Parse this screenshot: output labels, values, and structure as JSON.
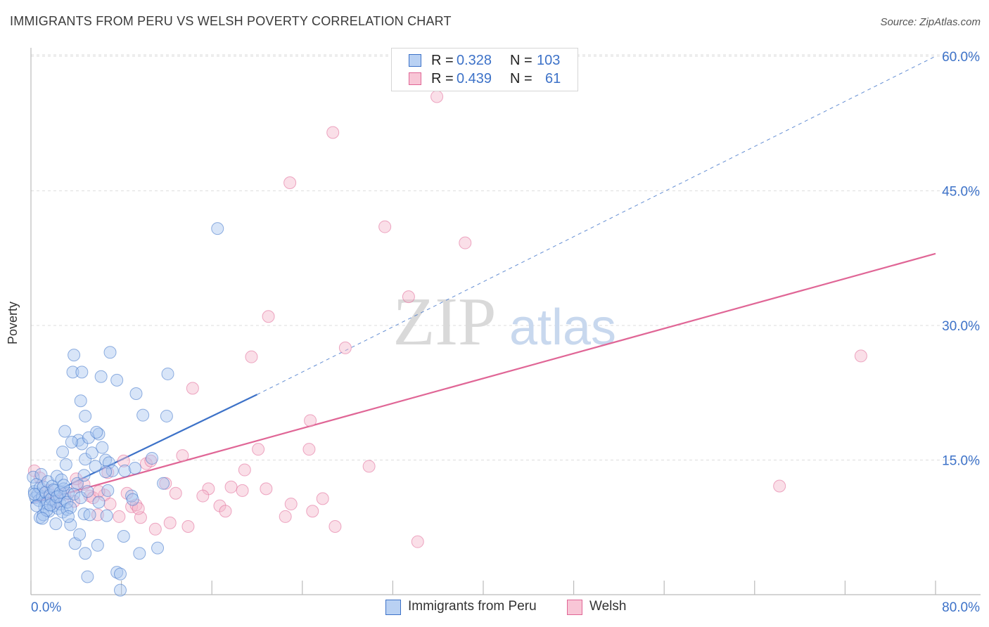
{
  "title": "IMMIGRANTS FROM PERU VS WELSH POVERTY CORRELATION CHART",
  "source": "Source: ZipAtlas.com",
  "watermark": {
    "zip": "ZIP",
    "atlas": "atlas"
  },
  "colors": {
    "blue": "#3d72c8",
    "blue_fill": "#a9c6ef",
    "pink": "#e06696",
    "pink_fill": "#f5b8cc"
  },
  "legend": {
    "r_label": "R =",
    "n_label": "N =",
    "rows": [
      {
        "r": "0.328",
        "n": "103"
      },
      {
        "r": "0.439",
        "n": "61"
      }
    ]
  },
  "chart_data": {
    "type": "scatter",
    "title": "IMMIGRANTS FROM PERU VS WELSH POVERTY CORRELATION CHART",
    "xlabel": "",
    "ylabel": "Poverty",
    "xlim": [
      0,
      80
    ],
    "ylim": [
      0,
      60
    ],
    "x_tick_labels": [
      "0.0%",
      "80.0%"
    ],
    "y_ticks": [
      15,
      30,
      45,
      60
    ],
    "y_tick_labels": [
      "15.0%",
      "30.0%",
      "45.0%",
      "60.0%"
    ],
    "series": [
      {
        "name": "Immigrants from Peru",
        "color": "#3d72c8",
        "trend": {
          "x0": 0,
          "y0": 10.2,
          "x1": 20,
          "y1": 22.3,
          "dashed_to_x": 80,
          "dashed_to_y": 60.0
        },
        "points": [
          [
            0.2,
            13.1
          ],
          [
            0.3,
            11.5
          ],
          [
            0.4,
            10.8
          ],
          [
            0.5,
            12.3
          ],
          [
            0.6,
            11.2
          ],
          [
            0.7,
            10.5
          ],
          [
            0.8,
            11.9
          ],
          [
            0.9,
            13.4
          ],
          [
            1.0,
            10.9
          ],
          [
            1.1,
            12.0
          ],
          [
            1.2,
            9.8
          ],
          [
            1.3,
            11.4
          ],
          [
            1.4,
            10.2
          ],
          [
            1.5,
            12.6
          ],
          [
            1.6,
            9.3
          ],
          [
            1.7,
            11.1
          ],
          [
            1.8,
            10.7
          ],
          [
            1.9,
            12.1
          ],
          [
            2.0,
            9.9
          ],
          [
            2.1,
            11.6
          ],
          [
            2.2,
            10.4
          ],
          [
            2.3,
            13.2
          ],
          [
            2.4,
            9.6
          ],
          [
            2.5,
            11.0
          ],
          [
            2.6,
            10.1
          ],
          [
            2.7,
            12.8
          ],
          [
            2.8,
            9.2
          ],
          [
            2.9,
            11.8
          ],
          [
            3.0,
            10.6
          ],
          [
            3.1,
            14.5
          ],
          [
            3.2,
            9.5
          ],
          [
            3.3,
            11.3
          ],
          [
            0.5,
            9.9
          ],
          [
            0.8,
            8.6
          ],
          [
            1.1,
            8.9
          ],
          [
            1.4,
            9.4
          ],
          [
            1.7,
            10.0
          ],
          [
            2.0,
            11.7
          ],
          [
            2.3,
            10.9
          ],
          [
            2.6,
            11.4
          ],
          [
            2.9,
            12.2
          ],
          [
            3.2,
            10.3
          ],
          [
            3.5,
            9.7
          ],
          [
            3.8,
            11.2
          ],
          [
            4.1,
            12.4
          ],
          [
            4.4,
            10.8
          ],
          [
            4.7,
            13.3
          ],
          [
            5.0,
            11.5
          ],
          [
            4.2,
            17.2
          ],
          [
            4.5,
            16.8
          ],
          [
            4.8,
            15.1
          ],
          [
            5.1,
            17.5
          ],
          [
            5.4,
            15.8
          ],
          [
            5.7,
            14.3
          ],
          [
            6.0,
            17.9
          ],
          [
            6.3,
            16.4
          ],
          [
            6.6,
            15.0
          ],
          [
            6.9,
            14.7
          ],
          [
            7.2,
            13.8
          ],
          [
            2.8,
            15.9
          ],
          [
            3.0,
            18.2
          ],
          [
            3.6,
            17.0
          ],
          [
            3.8,
            26.7
          ],
          [
            3.7,
            24.8
          ],
          [
            4.5,
            24.8
          ],
          [
            4.4,
            21.6
          ],
          [
            4.8,
            19.9
          ],
          [
            5.8,
            18.1
          ],
          [
            6.2,
            24.3
          ],
          [
            7.0,
            27.0
          ],
          [
            7.6,
            23.9
          ],
          [
            9.3,
            22.4
          ],
          [
            9.9,
            20.0
          ],
          [
            12.1,
            24.6
          ],
          [
            12.0,
            19.9
          ],
          [
            10.7,
            15.2
          ],
          [
            8.3,
            13.8
          ],
          [
            6.6,
            13.7
          ],
          [
            6.8,
            11.6
          ],
          [
            8.9,
            11.0
          ],
          [
            11.7,
            12.4
          ],
          [
            9.2,
            14.1
          ],
          [
            3.5,
            7.8
          ],
          [
            3.9,
            5.7
          ],
          [
            4.3,
            6.7
          ],
          [
            4.8,
            4.6
          ],
          [
            5.9,
            5.5
          ],
          [
            6.7,
            8.8
          ],
          [
            8.2,
            6.5
          ],
          [
            9.6,
            4.6
          ],
          [
            5.0,
            2.0
          ],
          [
            7.6,
            2.5
          ],
          [
            7.9,
            2.3
          ],
          [
            7.9,
            0.5
          ],
          [
            3.3,
            8.7
          ],
          [
            4.7,
            9.0
          ],
          [
            5.2,
            8.9
          ],
          [
            16.5,
            40.8
          ],
          [
            11.2,
            5.2
          ],
          [
            1.0,
            8.5
          ],
          [
            2.2,
            7.9
          ],
          [
            6.0,
            10.3
          ],
          [
            9.0,
            10.6
          ],
          [
            0.3,
            11.2
          ]
        ]
      },
      {
        "name": "Welsh",
        "color": "#e06696",
        "trend": {
          "x0": 0,
          "y0": 10.2,
          "x1": 80,
          "y1": 38.0
        },
        "points": [
          [
            0.3,
            13.8
          ],
          [
            0.8,
            13.0
          ],
          [
            1.5,
            11.6
          ],
          [
            2.2,
            10.3
          ],
          [
            3.0,
            11.2
          ],
          [
            3.8,
            10.4
          ],
          [
            4.1,
            12.0
          ],
          [
            4.7,
            12.3
          ],
          [
            5.2,
            11.0
          ],
          [
            5.5,
            10.8
          ],
          [
            5.9,
            8.9
          ],
          [
            6.5,
            11.1
          ],
          [
            6.8,
            13.6
          ],
          [
            7.0,
            10.1
          ],
          [
            7.8,
            8.7
          ],
          [
            8.2,
            14.9
          ],
          [
            8.5,
            11.3
          ],
          [
            8.9,
            9.8
          ],
          [
            9.3,
            10.0
          ],
          [
            9.7,
            8.6
          ],
          [
            10.2,
            14.6
          ],
          [
            10.6,
            14.9
          ],
          [
            11.0,
            7.3
          ],
          [
            12.3,
            8.0
          ],
          [
            12.8,
            11.3
          ],
          [
            13.4,
            15.5
          ],
          [
            13.9,
            7.6
          ],
          [
            14.3,
            23.0
          ],
          [
            15.7,
            11.8
          ],
          [
            16.7,
            9.9
          ],
          [
            17.2,
            9.3
          ],
          [
            17.7,
            12.0
          ],
          [
            18.7,
            11.6
          ],
          [
            18.9,
            13.9
          ],
          [
            19.5,
            26.5
          ],
          [
            20.1,
            16.2
          ],
          [
            20.8,
            11.8
          ],
          [
            21.0,
            31.0
          ],
          [
            22.5,
            8.7
          ],
          [
            23.0,
            10.1
          ],
          [
            22.9,
            45.9
          ],
          [
            24.6,
            16.2
          ],
          [
            24.7,
            19.4
          ],
          [
            24.9,
            9.3
          ],
          [
            25.8,
            10.7
          ],
          [
            26.7,
            51.5
          ],
          [
            26.9,
            7.6
          ],
          [
            27.8,
            27.5
          ],
          [
            29.9,
            14.3
          ],
          [
            31.3,
            41.0
          ],
          [
            33.4,
            33.2
          ],
          [
            34.2,
            5.9
          ],
          [
            35.9,
            55.5
          ],
          [
            38.4,
            39.2
          ],
          [
            66.2,
            12.1
          ],
          [
            73.4,
            26.6
          ],
          [
            11.9,
            12.4
          ],
          [
            15.2,
            11.0
          ],
          [
            6.0,
            11.5
          ],
          [
            4.0,
            12.9
          ],
          [
            9.5,
            9.6
          ]
        ]
      }
    ]
  }
}
